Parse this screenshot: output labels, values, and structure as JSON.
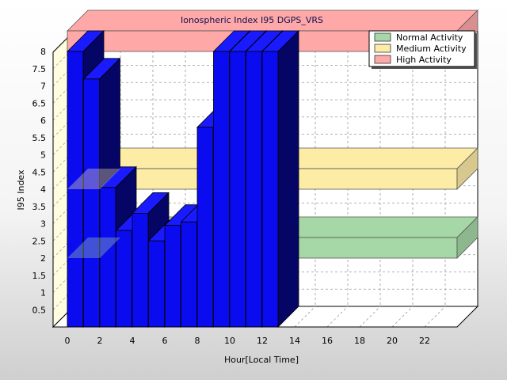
{
  "chart_data": {
    "type": "bar",
    "title": "Ionospheric Index I95 DGPS_VRS",
    "xlabel": "Hour[Local Time]",
    "ylabel": "I95 Index",
    "x_ticks": [
      "0",
      "2",
      "4",
      "6",
      "8",
      "10",
      "12",
      "14",
      "16",
      "18",
      "20",
      "22"
    ],
    "y_ticks": [
      "0.5",
      "1",
      "1.5",
      "2",
      "2.5",
      "3",
      "3.5",
      "4",
      "4.5",
      "5",
      "5.5",
      "6",
      "6.5",
      "7",
      "7.5",
      "8"
    ],
    "ylim": [
      0,
      8
    ],
    "grid": true,
    "legend_position": "top-right",
    "three_d": true,
    "bar_color": "#0b0bf0",
    "categories": [
      "0",
      "1",
      "2",
      "3",
      "4",
      "5",
      "6",
      "7",
      "8",
      "9",
      "10",
      "11",
      "12"
    ],
    "values": [
      8.0,
      7.2,
      4.05,
      2.8,
      3.3,
      2.5,
      2.95,
      3.05,
      5.8,
      8.0,
      8.0,
      8.0,
      8.0
    ],
    "bands": [
      {
        "name": "Normal Activity",
        "value": 2.0,
        "color": "#a6d7a6"
      },
      {
        "name": "Medium Activity",
        "value": 4.0,
        "color": "#fdeca6"
      },
      {
        "name": "High Activity",
        "value": 8.0,
        "color": "#ffa8a8"
      }
    ]
  }
}
